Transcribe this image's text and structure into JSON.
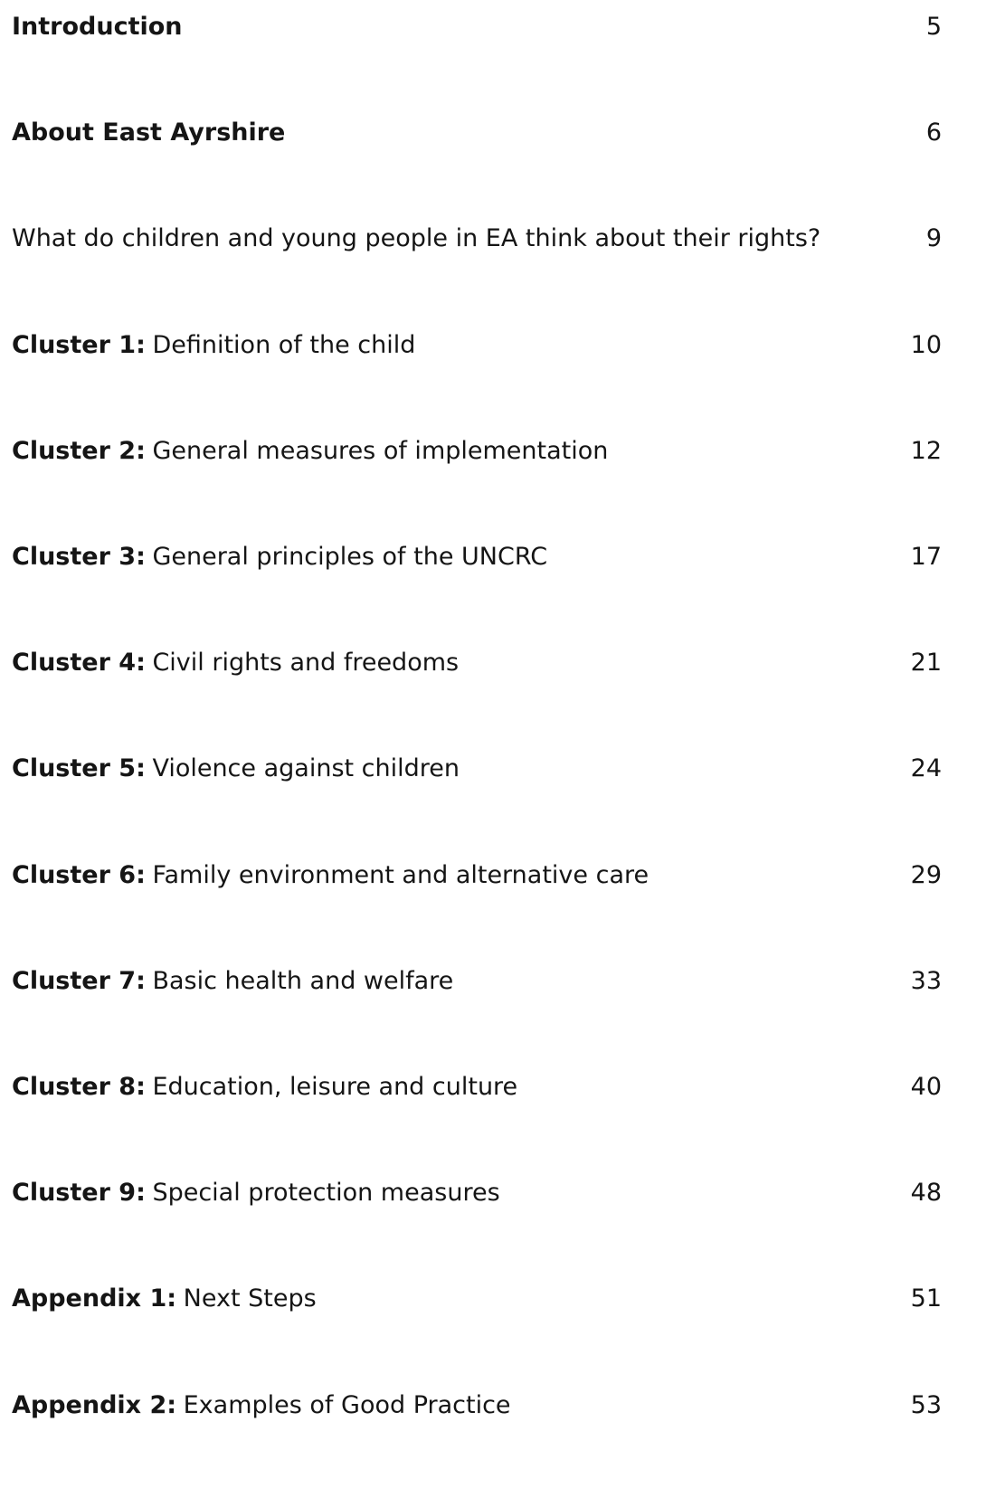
{
  "entries": [
    {
      "lead": "Introduction",
      "page": 5
    },
    {
      "lead": "About East Ayrshire",
      "page": 6
    },
    {
      "text": "What do children and young people in EA think about their rights?",
      "page": 9
    },
    {
      "lead": "Cluster 1:",
      "text": "Definition of the child",
      "page": 10
    },
    {
      "lead": "Cluster 2:",
      "text": "General measures of implementation",
      "page": 12
    },
    {
      "lead": "Cluster 3:",
      "text": "General principles of the UNCRC",
      "page": 17
    },
    {
      "lead": "Cluster 4:",
      "text": "Civil rights and freedoms",
      "page": 21
    },
    {
      "lead": "Cluster 5:",
      "text": "Violence against children",
      "page": 24
    },
    {
      "lead": "Cluster 6:",
      "text": "Family environment and alternative care",
      "page": 29
    },
    {
      "lead": "Cluster 7:",
      "text": "Basic health and welfare",
      "page": 33
    },
    {
      "lead": "Cluster 8:",
      "text": "Education, leisure and culture",
      "page": 40
    },
    {
      "lead": "Cluster 9:",
      "text": "Special protection measures",
      "page": 48
    },
    {
      "lead": "Appendix 1:",
      "text": "Next Steps",
      "page": 51
    },
    {
      "lead": "Appendix 2:",
      "text": "Examples of Good Practice",
      "page": 53
    }
  ]
}
